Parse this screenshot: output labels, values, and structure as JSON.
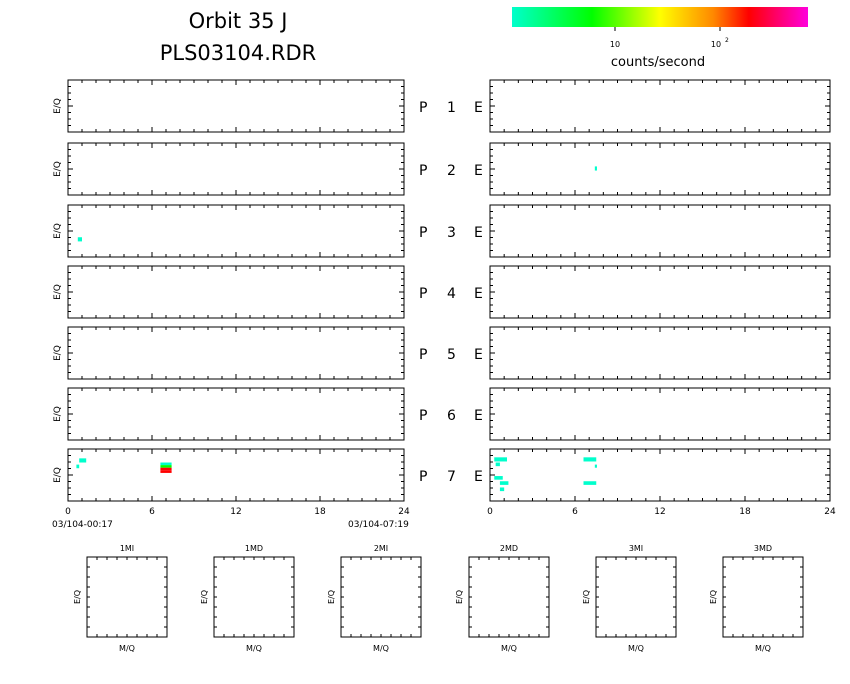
{
  "header": {
    "title_line1": "Orbit 35 J",
    "title_line2": "PLS03104.RDR"
  },
  "colorbar": {
    "tick1": "10",
    "tick2_base": "10",
    "tick2_exp": "2",
    "label": "counts/second",
    "stops": [
      "#00ffcc",
      "#00ff00",
      "#ffff00",
      "#ff8800",
      "#ff0000",
      "#ff00dd"
    ]
  },
  "panels": {
    "ylabel": "E/Q",
    "left_letter": "P",
    "right_letter": "E",
    "rows": [
      {
        "num": "1"
      },
      {
        "num": "2"
      },
      {
        "num": "3"
      },
      {
        "num": "4"
      },
      {
        "num": "5"
      },
      {
        "num": "6"
      },
      {
        "num": "7"
      }
    ]
  },
  "time_axis": {
    "ticks": [
      "0",
      "6",
      "12",
      "18",
      "24"
    ],
    "start_label": "03/104-00:17",
    "end_label": "03/104-07:19"
  },
  "bottom": {
    "xlabel": "M/Q",
    "ylabel": "E/Q",
    "panels": [
      "1MI",
      "1MD",
      "2MI",
      "2MD",
      "3MI",
      "3MD"
    ]
  },
  "chart_data": {
    "type": "heatmap",
    "x_range": [
      0,
      24
    ],
    "x_ticks": [
      0,
      6,
      12,
      18,
      24
    ],
    "color_scale": "log",
    "color_label": "counts/second",
    "color_ticks": [
      10,
      100
    ],
    "cells": [
      {
        "side": "right",
        "row": 2,
        "t": 7.4,
        "dt": 0.15,
        "e": 0.45,
        "de": 0.08,
        "color": "#00ffcc"
      },
      {
        "side": "left",
        "row": 3,
        "t": 0.7,
        "dt": 0.3,
        "e": 0.62,
        "de": 0.08,
        "color": "#00ffcc"
      },
      {
        "side": "left",
        "row": 7,
        "t": 0.8,
        "dt": 0.5,
        "e": 0.18,
        "de": 0.08,
        "color": "#00ffcc"
      },
      {
        "side": "left",
        "row": 7,
        "t": 0.6,
        "dt": 0.2,
        "e": 0.3,
        "de": 0.07,
        "color": "#00ffcc"
      },
      {
        "side": "left",
        "row": 7,
        "t": 6.6,
        "dt": 0.8,
        "e": 0.26,
        "de": 0.05,
        "color": "#00ffcc"
      },
      {
        "side": "left",
        "row": 7,
        "t": 6.6,
        "dt": 0.8,
        "e": 0.31,
        "de": 0.05,
        "color": "#00ff00"
      },
      {
        "side": "left",
        "row": 7,
        "t": 6.6,
        "dt": 0.8,
        "e": 0.36,
        "de": 0.05,
        "color": "#ff0000"
      },
      {
        "side": "left",
        "row": 7,
        "t": 6.6,
        "dt": 0.8,
        "e": 0.41,
        "de": 0.05,
        "color": "#ff0000"
      },
      {
        "side": "right",
        "row": 7,
        "t": 0.3,
        "dt": 0.9,
        "e": 0.16,
        "de": 0.08,
        "color": "#00ffcc"
      },
      {
        "side": "right",
        "row": 7,
        "t": 0.4,
        "dt": 0.3,
        "e": 0.26,
        "de": 0.07,
        "color": "#00ffcc"
      },
      {
        "side": "right",
        "row": 7,
        "t": 0.3,
        "dt": 0.6,
        "e": 0.52,
        "de": 0.07,
        "color": "#00ffcc"
      },
      {
        "side": "right",
        "row": 7,
        "t": 0.7,
        "dt": 0.6,
        "e": 0.62,
        "de": 0.07,
        "color": "#00ffcc"
      },
      {
        "side": "right",
        "row": 7,
        "t": 0.7,
        "dt": 0.3,
        "e": 0.74,
        "de": 0.07,
        "color": "#00ffcc"
      },
      {
        "side": "right",
        "row": 7,
        "t": 6.6,
        "dt": 0.9,
        "e": 0.16,
        "de": 0.08,
        "color": "#00ffcc"
      },
      {
        "side": "right",
        "row": 7,
        "t": 7.4,
        "dt": 0.15,
        "e": 0.3,
        "de": 0.06,
        "color": "#00ffcc"
      },
      {
        "side": "right",
        "row": 7,
        "t": 6.6,
        "dt": 0.9,
        "e": 0.62,
        "de": 0.07,
        "color": "#00ffcc"
      }
    ]
  }
}
